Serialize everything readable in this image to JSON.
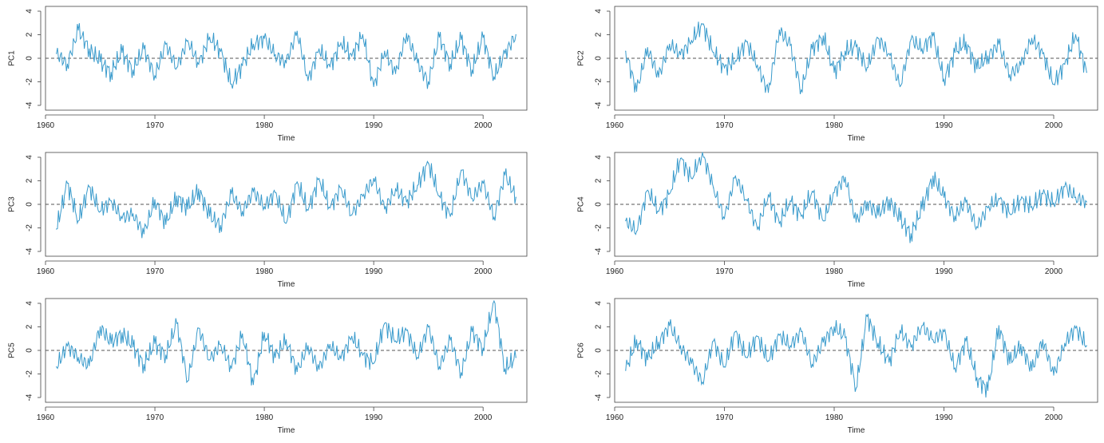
{
  "chart_data": [
    {
      "type": "line",
      "ylabel": "PC1",
      "xlabel": "Time",
      "xlim": [
        1960,
        2004
      ],
      "ylim": [
        -4,
        4
      ],
      "xticks": [
        1960,
        1970,
        1980,
        1990,
        2000
      ],
      "yticks": [
        -4,
        -2,
        0,
        2,
        4
      ],
      "reference_line": 0,
      "series": [
        {
          "x": [
            1961,
            1962,
            1963,
            1964,
            1965,
            1966,
            1967,
            1968,
            1969,
            1970,
            1971,
            1972,
            1973,
            1974,
            1975,
            1976,
            1977,
            1978,
            1979,
            1980,
            1981,
            1982,
            1983,
            1984,
            1985,
            1986,
            1987,
            1988,
            1989,
            1990,
            1991,
            1992,
            1993,
            1994,
            1995,
            1996,
            1997,
            1998,
            1999,
            2000,
            2001,
            2002,
            2003
          ],
          "values": [
            0.4,
            -0.5,
            2.4,
            0.8,
            -0.3,
            -1.2,
            0.5,
            -1.0,
            0.8,
            -1.5,
            1.2,
            -0.8,
            1.5,
            -0.5,
            1.8,
            0.6,
            -2.2,
            -0.6,
            1.2,
            1.7,
            0.3,
            -0.4,
            2.3,
            -1.9,
            0.8,
            -0.7,
            1.3,
            0.2,
            2.0,
            -2.4,
            0.6,
            -1.3,
            2.1,
            -0.4,
            -2.0,
            1.8,
            -0.5,
            1.6,
            -1.0,
            1.8,
            -1.6,
            0.4,
            2.0
          ]
        }
      ]
    },
    {
      "type": "line",
      "ylabel": "PC2",
      "xlabel": "Time",
      "xlim": [
        1960,
        2004
      ],
      "ylim": [
        -4,
        4
      ],
      "xticks": [
        1960,
        1970,
        1980,
        1990,
        2000
      ],
      "yticks": [
        -4,
        -2,
        0,
        2,
        4
      ],
      "reference_line": 0,
      "series": [
        {
          "x": [
            1961,
            1962,
            1963,
            1964,
            1965,
            1966,
            1967,
            1968,
            1969,
            1970,
            1971,
            1972,
            1973,
            1974,
            1975,
            1976,
            1977,
            1978,
            1979,
            1980,
            1981,
            1982,
            1983,
            1984,
            1985,
            1986,
            1987,
            1988,
            1989,
            1990,
            1991,
            1992,
            1993,
            1994,
            1995,
            1996,
            1997,
            1998,
            1999,
            2000,
            2001,
            2002,
            2003
          ],
          "values": [
            0.6,
            -2.8,
            0.9,
            -1.6,
            1.2,
            0.3,
            1.5,
            2.9,
            0.5,
            -0.8,
            -0.2,
            1.4,
            -0.6,
            -2.9,
            2.4,
            1.1,
            -2.7,
            0.8,
            1.9,
            -1.2,
            0.6,
            1.0,
            -0.8,
            1.7,
            0.4,
            -2.4,
            1.6,
            0.8,
            1.9,
            -1.8,
            0.5,
            1.4,
            -0.9,
            0.2,
            1.2,
            -1.4,
            -0.6,
            1.7,
            0.4,
            -2.2,
            -0.5,
            2.0,
            -1.2
          ]
        }
      ]
    },
    {
      "type": "line",
      "ylabel": "PC3",
      "xlabel": "Time",
      "xlim": [
        1960,
        2004
      ],
      "ylim": [
        -4,
        4
      ],
      "xticks": [
        1960,
        1970,
        1980,
        1990,
        2000
      ],
      "yticks": [
        -4,
        -2,
        0,
        2,
        4
      ],
      "reference_line": 0,
      "series": [
        {
          "x": [
            1961,
            1962,
            1963,
            1964,
            1965,
            1966,
            1967,
            1968,
            1969,
            1970,
            1971,
            1972,
            1973,
            1974,
            1975,
            1976,
            1977,
            1978,
            1979,
            1980,
            1981,
            1982,
            1983,
            1984,
            1985,
            1986,
            1987,
            1988,
            1989,
            1990,
            1991,
            1992,
            1993,
            1994,
            1995,
            1996,
            1997,
            1998,
            1999,
            2000,
            2001,
            2002,
            2003
          ],
          "values": [
            -2.1,
            1.8,
            -1.4,
            1.5,
            -0.6,
            0.3,
            -1.2,
            -0.8,
            -2.5,
            0.4,
            -1.7,
            0.7,
            -0.4,
            1.3,
            -1.0,
            -1.8,
            0.9,
            -0.6,
            1.1,
            -0.2,
            1.0,
            -1.6,
            1.9,
            -0.5,
            2.2,
            -0.3,
            1.4,
            -0.9,
            0.7,
            2.2,
            -0.4,
            1.3,
            0.2,
            1.6,
            3.5,
            0.7,
            -1.0,
            2.9,
            0.5,
            1.8,
            -1.1,
            2.5,
            0.6
          ]
        }
      ]
    },
    {
      "type": "line",
      "ylabel": "PC4",
      "xlabel": "Time",
      "xlim": [
        1960,
        2004
      ],
      "ylim": [
        -4,
        4
      ],
      "xticks": [
        1960,
        1970,
        1980,
        1990,
        2000
      ],
      "yticks": [
        -4,
        -2,
        0,
        2,
        4
      ],
      "reference_line": 0,
      "series": [
        {
          "x": [
            1961,
            1962,
            1963,
            1964,
            1965,
            1966,
            1967,
            1968,
            1969,
            1970,
            1971,
            1972,
            1973,
            1974,
            1975,
            1976,
            1977,
            1978,
            1979,
            1980,
            1981,
            1982,
            1983,
            1984,
            1985,
            1986,
            1987,
            1988,
            1989,
            1990,
            1991,
            1992,
            1993,
            1994,
            1995,
            1996,
            1997,
            1998,
            1999,
            2000,
            2001,
            2002,
            2003
          ],
          "values": [
            -1.4,
            -2.3,
            1.2,
            -0.6,
            0.9,
            3.9,
            2.2,
            4.4,
            1.4,
            -1.2,
            2.4,
            0.4,
            -2.1,
            0.8,
            -1.6,
            0.3,
            -1.0,
            1.1,
            -1.4,
            1.0,
            2.3,
            -1.5,
            0.2,
            -0.9,
            0.4,
            -1.3,
            -2.5,
            -0.4,
            2.4,
            0.6,
            -1.0,
            0.2,
            -1.9,
            -0.3,
            0.5,
            -0.8,
            0.4,
            -0.2,
            0.9,
            0.1,
            1.5,
            0.6,
            0.2
          ]
        }
      ]
    },
    {
      "type": "line",
      "ylabel": "PC5",
      "xlabel": "Time",
      "xlim": [
        1960,
        2004
      ],
      "ylim": [
        -4,
        4
      ],
      "xticks": [
        1960,
        1970,
        1980,
        1990,
        2000
      ],
      "yticks": [
        -4,
        -2,
        0,
        2,
        4
      ],
      "reference_line": 0,
      "series": [
        {
          "x": [
            1961,
            1962,
            1963,
            1964,
            1965,
            1966,
            1967,
            1968,
            1969,
            1970,
            1971,
            1972,
            1973,
            1974,
            1975,
            1976,
            1977,
            1978,
            1979,
            1980,
            1981,
            1982,
            1983,
            1984,
            1985,
            1986,
            1987,
            1988,
            1989,
            1990,
            1991,
            1992,
            1993,
            1994,
            1995,
            1996,
            1997,
            1998,
            1999,
            2000,
            2001,
            2002,
            2003
          ],
          "values": [
            -1.4,
            0.4,
            -0.6,
            -1.3,
            2.0,
            0.6,
            1.5,
            0.3,
            -1.2,
            0.6,
            -0.4,
            2.3,
            -2.6,
            1.9,
            -0.8,
            0.5,
            -1.5,
            1.4,
            -2.9,
            1.5,
            -0.6,
            0.9,
            -1.8,
            0.4,
            -1.6,
            0.5,
            -0.7,
            1.2,
            -0.4,
            -1.1,
            2.3,
            0.8,
            1.7,
            -0.6,
            2.0,
            -1.4,
            0.9,
            -1.9,
            1.6,
            0.2,
            4.2,
            -1.6,
            -0.6
          ]
        }
      ]
    },
    {
      "type": "line",
      "ylabel": "PC6",
      "xlabel": "Time",
      "xlim": [
        1960,
        2004
      ],
      "ylim": [
        -4,
        4
      ],
      "xticks": [
        1960,
        1970,
        1980,
        1990,
        2000
      ],
      "yticks": [
        -4,
        -2,
        0,
        2,
        4
      ],
      "reference_line": 0,
      "series": [
        {
          "x": [
            1961,
            1962,
            1963,
            1964,
            1965,
            1966,
            1967,
            1968,
            1969,
            1970,
            1971,
            1972,
            1973,
            1974,
            1975,
            1976,
            1977,
            1978,
            1979,
            1980,
            1981,
            1982,
            1983,
            1984,
            1985,
            1986,
            1987,
            1988,
            1989,
            1990,
            1991,
            1992,
            1993,
            1994,
            1995,
            1996,
            1997,
            1998,
            1999,
            2000,
            2001,
            2002,
            2003
          ],
          "values": [
            -1.7,
            0.9,
            -0.8,
            0.7,
            2.1,
            0.4,
            -1.1,
            -2.7,
            0.8,
            -1.4,
            1.6,
            -0.6,
            1.2,
            -0.9,
            1.3,
            0.4,
            1.6,
            -1.2,
            0.7,
            2.0,
            1.1,
            -3.2,
            2.9,
            0.6,
            -1.0,
            1.7,
            0.3,
            2.1,
            0.9,
            1.6,
            -1.5,
            0.8,
            -2.3,
            -3.4,
            2.1,
            -1.1,
            0.5,
            -1.7,
            0.9,
            -2.1,
            0.6,
            1.9,
            0.4
          ]
        }
      ]
    }
  ]
}
